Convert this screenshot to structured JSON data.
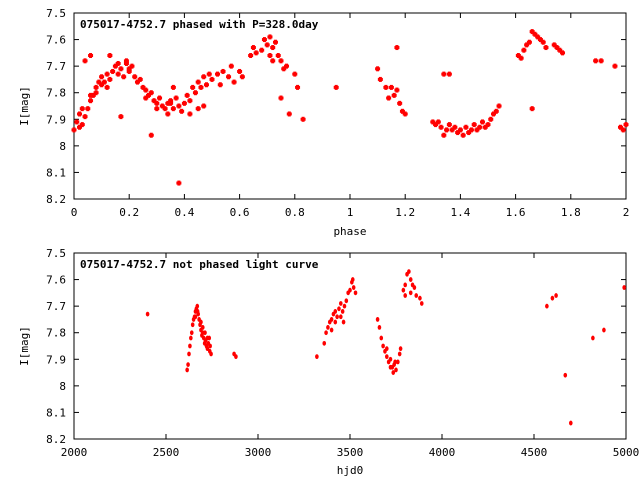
{
  "chart_data": [
    {
      "type": "scatter",
      "title": "075017-4752.7 phased with P=328.0day",
      "xlabel": "phase",
      "ylabel": "I[mag]",
      "xlim": [
        0,
        2
      ],
      "ylim": [
        8.2,
        7.5
      ],
      "y_inverted": true,
      "x_ticks": [
        "0",
        "0.2",
        "0.4",
        "0.6",
        "0.8",
        "1",
        "1.2",
        "1.4",
        "1.6",
        "1.8",
        "2"
      ],
      "y_ticks": [
        "7.5",
        "7.6",
        "7.7",
        "7.8",
        "7.9",
        "8",
        "8.1",
        "8.2"
      ],
      "grid": false,
      "marker_color": "#ff0000",
      "series": [
        {
          "points": [
            [
              0.0,
              7.94
            ],
            [
              0.01,
              7.91
            ],
            [
              0.02,
              7.88
            ],
            [
              0.03,
              7.86
            ],
            [
              0.04,
              7.89
            ],
            [
              0.05,
              7.86
            ],
            [
              0.06,
              7.83
            ],
            [
              0.07,
              7.81
            ],
            [
              0.08,
              7.78
            ],
            [
              0.09,
              7.76
            ],
            [
              0.1,
              7.74
            ],
            [
              0.11,
              7.76
            ],
            [
              0.12,
              7.73
            ],
            [
              0.13,
              7.75
            ],
            [
              0.14,
              7.72
            ],
            [
              0.15,
              7.7
            ],
            [
              0.16,
              7.73
            ],
            [
              0.17,
              7.71
            ],
            [
              0.18,
              7.74
            ],
            [
              0.19,
              7.69
            ],
            [
              0.2,
              7.72
            ],
            [
              0.21,
              7.7
            ],
            [
              0.22,
              7.74
            ],
            [
              0.23,
              7.76
            ],
            [
              0.24,
              7.75
            ],
            [
              0.25,
              7.78
            ],
            [
              0.26,
              7.79
            ],
            [
              0.27,
              7.81
            ],
            [
              0.28,
              7.8
            ],
            [
              0.29,
              7.83
            ],
            [
              0.3,
              7.84
            ],
            [
              0.31,
              7.82
            ],
            [
              0.32,
              7.85
            ],
            [
              0.33,
              7.86
            ],
            [
              0.34,
              7.84
            ],
            [
              0.35,
              7.83
            ],
            [
              0.36,
              7.86
            ],
            [
              0.37,
              7.82
            ],
            [
              0.38,
              7.85
            ],
            [
              0.39,
              7.87
            ],
            [
              0.4,
              7.84
            ],
            [
              0.41,
              7.81
            ],
            [
              0.42,
              7.83
            ],
            [
              0.43,
              7.78
            ],
            [
              0.44,
              7.8
            ],
            [
              0.45,
              7.76
            ],
            [
              0.46,
              7.78
            ],
            [
              0.47,
              7.74
            ],
            [
              0.48,
              7.77
            ],
            [
              0.49,
              7.73
            ],
            [
              0.5,
              7.75
            ],
            [
              0.52,
              7.73
            ],
            [
              0.54,
              7.72
            ],
            [
              0.56,
              7.74
            ],
            [
              0.57,
              7.7
            ],
            [
              0.58,
              7.76
            ],
            [
              0.6,
              7.72
            ],
            [
              0.61,
              7.74
            ],
            [
              0.64,
              7.66
            ],
            [
              0.65,
              7.63
            ],
            [
              0.66,
              7.65
            ],
            [
              0.68,
              7.64
            ],
            [
              0.69,
              7.6
            ],
            [
              0.7,
              7.62
            ],
            [
              0.71,
              7.59
            ],
            [
              0.72,
              7.63
            ],
            [
              0.73,
              7.61
            ],
            [
              0.74,
              7.66
            ],
            [
              0.75,
              7.68
            ],
            [
              0.76,
              7.71
            ],
            [
              0.77,
              7.7
            ],
            [
              0.8,
              7.73
            ],
            [
              0.71,
              7.66
            ],
            [
              0.72,
              7.68
            ],
            [
              0.04,
              7.68
            ],
            [
              0.16,
              7.69
            ],
            [
              0.35,
              7.84
            ],
            [
              0.36,
              7.78
            ],
            [
              0.42,
              7.88
            ],
            [
              0.45,
              7.86
            ],
            [
              0.47,
              7.85
            ],
            [
              0.53,
              7.77
            ],
            [
              0.02,
              7.93
            ],
            [
              0.03,
              7.92
            ],
            [
              0.06,
              7.81
            ],
            [
              0.08,
              7.8
            ],
            [
              0.1,
              7.77
            ],
            [
              0.12,
              7.78
            ],
            [
              0.2,
              7.71
            ],
            [
              0.26,
              7.82
            ],
            [
              0.3,
              7.86
            ],
            [
              0.34,
              7.88
            ],
            [
              0.17,
              7.89
            ],
            [
              0.28,
              7.96
            ],
            [
              0.38,
              8.14
            ],
            [
              0.75,
              7.82
            ],
            [
              0.78,
              7.88
            ],
            [
              0.83,
              7.9
            ],
            [
              0.81,
              7.78
            ],
            [
              0.95,
              7.78
            ],
            [
              0.06,
              7.66
            ],
            [
              0.13,
              7.66
            ],
            [
              0.19,
              7.68
            ],
            [
              1.1,
              7.71
            ],
            [
              1.11,
              7.75
            ],
            [
              1.13,
              7.78
            ],
            [
              1.14,
              7.82
            ],
            [
              1.15,
              7.78
            ],
            [
              1.16,
              7.81
            ],
            [
              1.17,
              7.79
            ],
            [
              1.18,
              7.84
            ],
            [
              1.19,
              7.87
            ],
            [
              1.2,
              7.88
            ],
            [
              1.17,
              7.63
            ],
            [
              1.3,
              7.91
            ],
            [
              1.31,
              7.92
            ],
            [
              1.32,
              7.91
            ],
            [
              1.33,
              7.93
            ],
            [
              1.34,
              7.96
            ],
            [
              1.35,
              7.94
            ],
            [
              1.36,
              7.92
            ],
            [
              1.37,
              7.94
            ],
            [
              1.38,
              7.93
            ],
            [
              1.39,
              7.95
            ],
            [
              1.4,
              7.94
            ],
            [
              1.41,
              7.96
            ],
            [
              1.42,
              7.93
            ],
            [
              1.43,
              7.95
            ],
            [
              1.44,
              7.94
            ],
            [
              1.45,
              7.92
            ],
            [
              1.46,
              7.94
            ],
            [
              1.47,
              7.93
            ],
            [
              1.48,
              7.91
            ],
            [
              1.49,
              7.93
            ],
            [
              1.5,
              7.92
            ],
            [
              1.51,
              7.9
            ],
            [
              1.52,
              7.88
            ],
            [
              1.53,
              7.87
            ],
            [
              1.54,
              7.85
            ],
            [
              1.34,
              7.73
            ],
            [
              1.36,
              7.73
            ],
            [
              1.61,
              7.66
            ],
            [
              1.62,
              7.67
            ],
            [
              1.63,
              7.64
            ],
            [
              1.64,
              7.62
            ],
            [
              1.65,
              7.61
            ],
            [
              1.66,
              7.57
            ],
            [
              1.67,
              7.58
            ],
            [
              1.68,
              7.59
            ],
            [
              1.69,
              7.6
            ],
            [
              1.7,
              7.61
            ],
            [
              1.71,
              7.63
            ],
            [
              1.74,
              7.62
            ],
            [
              1.75,
              7.63
            ],
            [
              1.76,
              7.64
            ],
            [
              1.77,
              7.65
            ],
            [
              1.66,
              7.86
            ],
            [
              1.89,
              7.68
            ],
            [
              1.91,
              7.68
            ],
            [
              1.96,
              7.7
            ],
            [
              1.98,
              7.93
            ],
            [
              1.99,
              7.94
            ],
            [
              2.0,
              7.92
            ]
          ]
        }
      ]
    },
    {
      "type": "scatter",
      "title": "075017-4752.7 not phased light curve",
      "xlabel": "hjd0",
      "ylabel": "I[mag]",
      "xlim": [
        2000,
        5000
      ],
      "ylim": [
        8.2,
        7.5
      ],
      "y_inverted": true,
      "x_ticks": [
        "2000",
        "2500",
        "3000",
        "3500",
        "4000",
        "4500",
        "5000"
      ],
      "y_ticks": [
        "7.5",
        "7.6",
        "7.7",
        "7.8",
        "7.9",
        "8",
        "8.1",
        "8.2"
      ],
      "grid": false,
      "marker_color": "#ff0000",
      "series": [
        {
          "points": [
            [
              2400,
              7.73
            ],
            [
              2615,
              7.94
            ],
            [
              2620,
              7.92
            ],
            [
              2625,
              7.88
            ],
            [
              2630,
              7.85
            ],
            [
              2635,
              7.82
            ],
            [
              2640,
              7.8
            ],
            [
              2645,
              7.77
            ],
            [
              2650,
              7.75
            ],
            [
              2655,
              7.74
            ],
            [
              2660,
              7.72
            ],
            [
              2665,
              7.71
            ],
            [
              2670,
              7.7
            ],
            [
              2675,
              7.73
            ],
            [
              2680,
              7.75
            ],
            [
              2685,
              7.77
            ],
            [
              2690,
              7.79
            ],
            [
              2695,
              7.81
            ],
            [
              2700,
              7.8
            ],
            [
              2705,
              7.82
            ],
            [
              2710,
              7.84
            ],
            [
              2715,
              7.83
            ],
            [
              2720,
              7.85
            ],
            [
              2725,
              7.86
            ],
            [
              2730,
              7.84
            ],
            [
              2735,
              7.82
            ],
            [
              2740,
              7.85
            ],
            [
              2745,
              7.88
            ],
            [
              2660,
              7.74
            ],
            [
              2672,
              7.72
            ],
            [
              2690,
              7.76
            ],
            [
              2700,
              7.78
            ],
            [
              2712,
              7.8
            ],
            [
              2725,
              7.82
            ],
            [
              2738,
              7.87
            ],
            [
              2870,
              7.88
            ],
            [
              2880,
              7.89
            ],
            [
              3320,
              7.89
            ],
            [
              3360,
              7.84
            ],
            [
              3370,
              7.8
            ],
            [
              3380,
              7.78
            ],
            [
              3390,
              7.76
            ],
            [
              3400,
              7.75
            ],
            [
              3410,
              7.73
            ],
            [
              3420,
              7.72
            ],
            [
              3430,
              7.74
            ],
            [
              3440,
              7.71
            ],
            [
              3450,
              7.69
            ],
            [
              3460,
              7.72
            ],
            [
              3470,
              7.7
            ],
            [
              3480,
              7.68
            ],
            [
              3490,
              7.65
            ],
            [
              3500,
              7.64
            ],
            [
              3510,
              7.61
            ],
            [
              3515,
              7.6
            ],
            [
              3520,
              7.63
            ],
            [
              3530,
              7.65
            ],
            [
              3400,
              7.79
            ],
            [
              3420,
              7.76
            ],
            [
              3450,
              7.74
            ],
            [
              3465,
              7.76
            ],
            [
              3650,
              7.75
            ],
            [
              3660,
              7.78
            ],
            [
              3670,
              7.82
            ],
            [
              3680,
              7.85
            ],
            [
              3690,
              7.87
            ],
            [
              3700,
              7.89
            ],
            [
              3710,
              7.91
            ],
            [
              3720,
              7.9
            ],
            [
              3730,
              7.93
            ],
            [
              3740,
              7.92
            ],
            [
              3750,
              7.94
            ],
            [
              3760,
              7.91
            ],
            [
              3770,
              7.88
            ],
            [
              3775,
              7.86
            ],
            [
              3700,
              7.86
            ],
            [
              3720,
              7.93
            ],
            [
              3735,
              7.95
            ],
            [
              3745,
              7.91
            ],
            [
              3790,
              7.64
            ],
            [
              3800,
              7.62
            ],
            [
              3810,
              7.58
            ],
            [
              3820,
              7.57
            ],
            [
              3830,
              7.6
            ],
            [
              3840,
              7.62
            ],
            [
              3850,
              7.63
            ],
            [
              3860,
              7.66
            ],
            [
              3800,
              7.66
            ],
            [
              3830,
              7.65
            ],
            [
              3880,
              7.67
            ],
            [
              3890,
              7.69
            ],
            [
              4570,
              7.7
            ],
            [
              4600,
              7.67
            ],
            [
              4620,
              7.66
            ],
            [
              4670,
              7.96
            ],
            [
              4700,
              8.14
            ],
            [
              4820,
              7.82
            ],
            [
              4880,
              7.79
            ],
            [
              4990,
              7.63
            ]
          ]
        }
      ]
    }
  ]
}
